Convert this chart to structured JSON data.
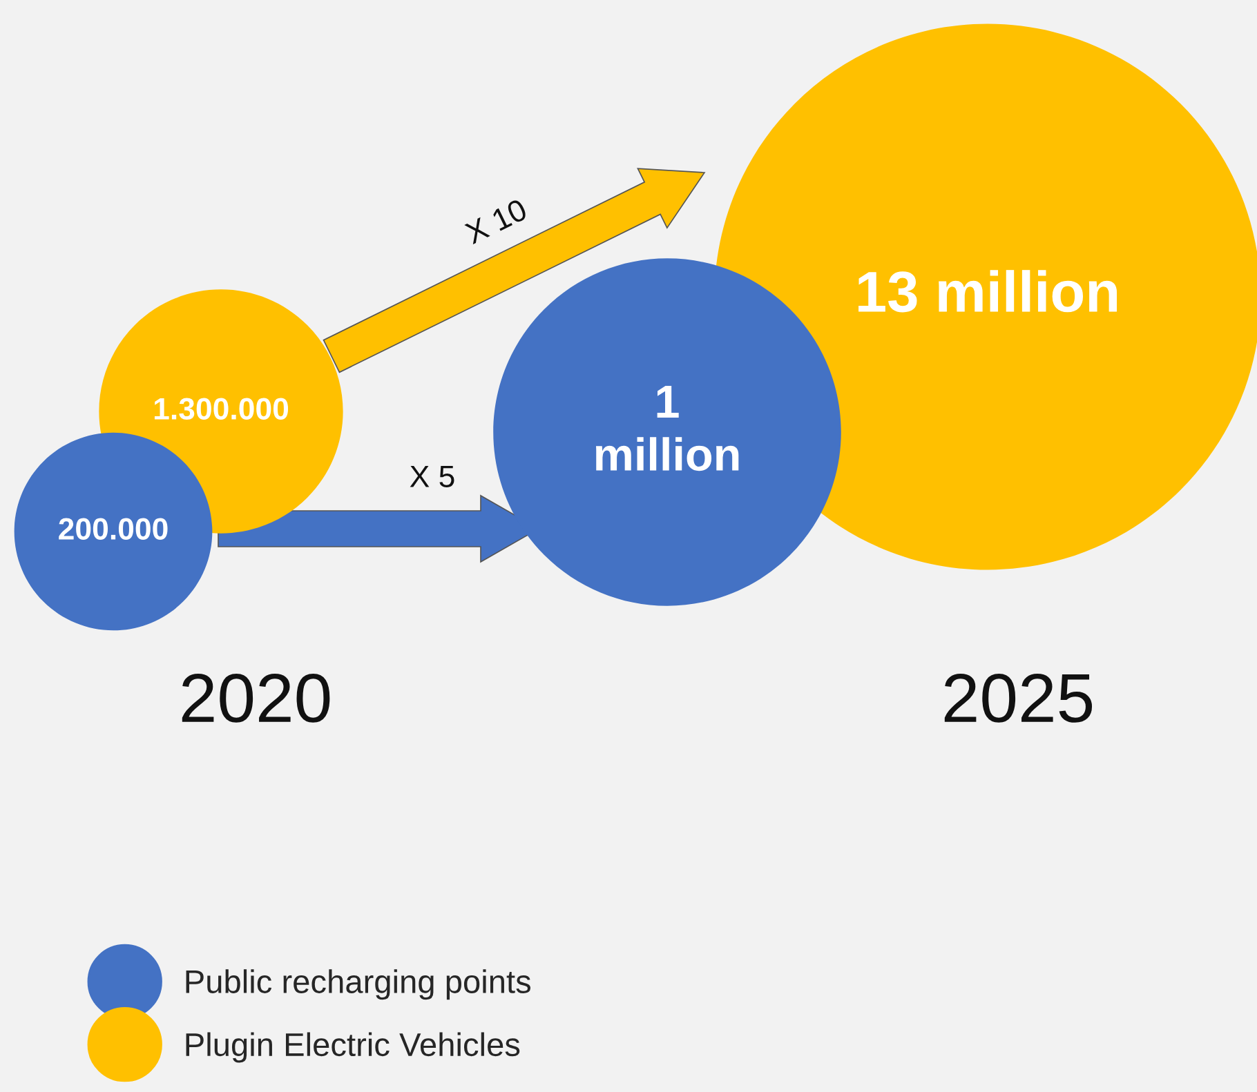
{
  "chart_data": {
    "type": "other",
    "categories": [
      "2020",
      "2025"
    ],
    "series": [
      {
        "name": "Public recharging points",
        "color": "#4472c4",
        "values": [
          200000,
          1000000
        ],
        "value_labels": [
          "200.000",
          "1\nmillion"
        ]
      },
      {
        "name": "Plugin Electric Vehicles",
        "color": "#ffc000",
        "values": [
          1300000,
          13000000
        ],
        "value_labels": [
          "1.300.000",
          "13 million"
        ]
      }
    ],
    "annotations": [
      "X 5",
      "X 10"
    ],
    "legend": "bottom left"
  }
}
